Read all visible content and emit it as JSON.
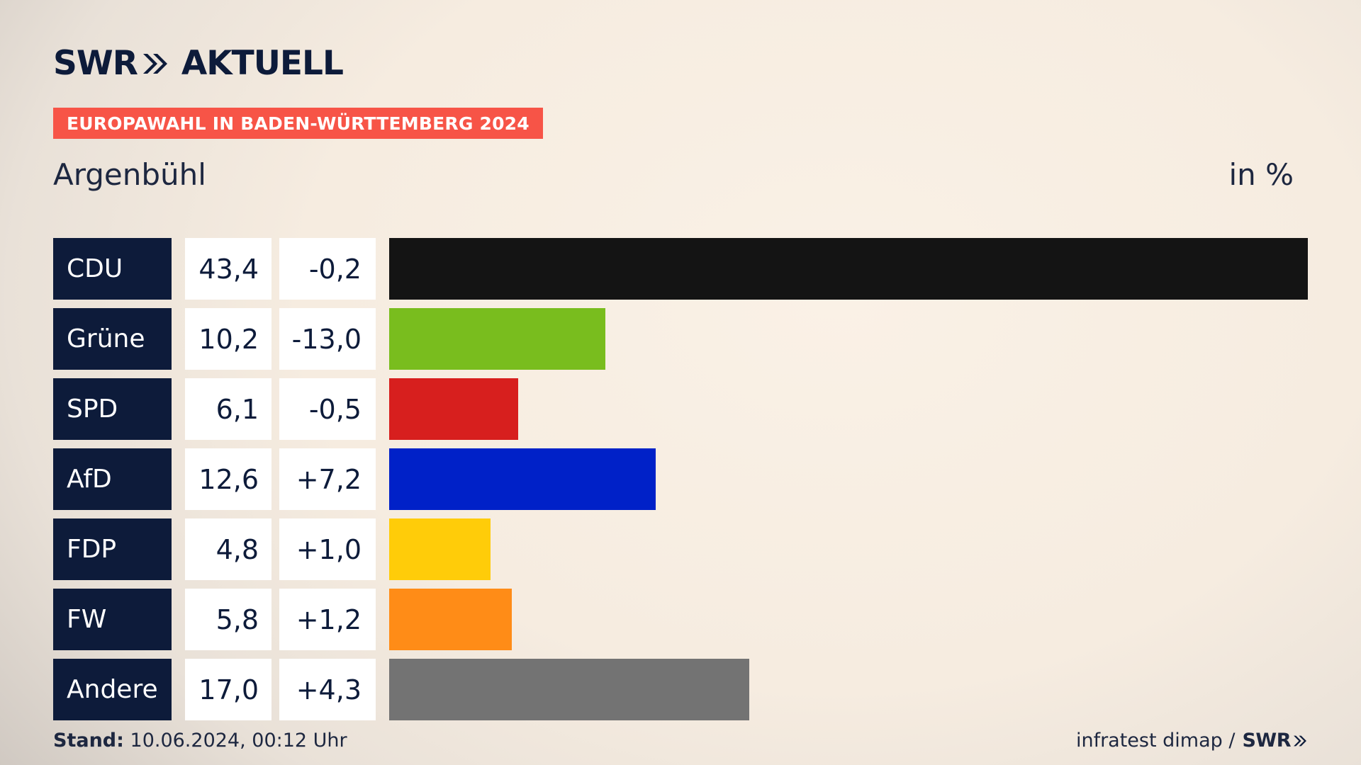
{
  "logo": {
    "brand": "SWR",
    "product": "AKTUELL",
    "icon": "double-chevron-icon"
  },
  "badge": "EUROPAWAHL IN BADEN-WÜRTTEMBERG 2024",
  "region": "Argenbühl",
  "unit": "in %",
  "footer": {
    "stand_label": "Stand:",
    "stand_value": "10.06.2024, 00:12 Uhr",
    "source": "infratest dimap /",
    "brand": "SWR"
  },
  "chart_data": {
    "type": "bar",
    "orientation": "horizontal",
    "categories": [
      "CDU",
      "Grüne",
      "SPD",
      "AfD",
      "FDP",
      "FW",
      "Andere"
    ],
    "values": [
      43.4,
      10.2,
      6.1,
      12.6,
      4.8,
      5.8,
      17.0
    ],
    "value_labels": [
      "43,4",
      "10,2",
      "6,1",
      "12,6",
      "4,8",
      "5,8",
      "17,0"
    ],
    "diff_labels": [
      "-0,2",
      "-13,0",
      "-0,5",
      "+7,2",
      "+1,0",
      "+1,2",
      "+4,3"
    ],
    "colors": [
      "#141414",
      "#79bd1e",
      "#d71f1e",
      "#0021c8",
      "#ffcc09",
      "#ff8c17",
      "#737373"
    ],
    "xlim": [
      0,
      43.4
    ]
  }
}
